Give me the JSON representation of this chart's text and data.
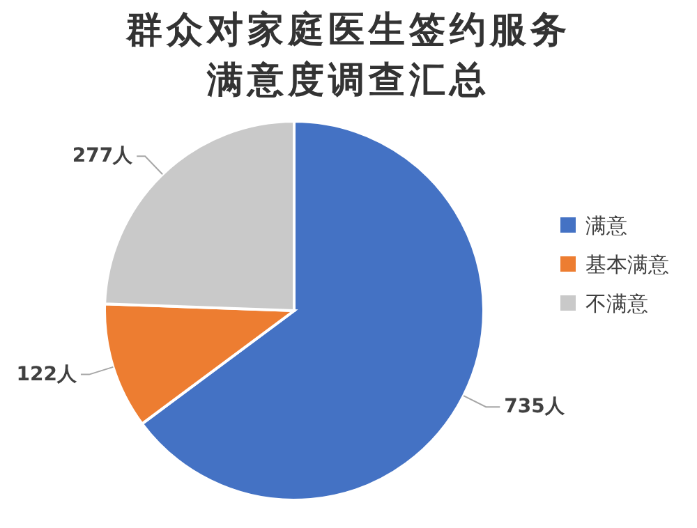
{
  "chart_data": {
    "type": "pie",
    "title": "群众对家庭医生签约服务满意度调查汇总",
    "categories": [
      "满意",
      "基本满意",
      "不满意"
    ],
    "values": [
      735,
      122,
      277
    ],
    "colors": [
      "#4472c4",
      "#ed7d31",
      "#c9c9c9"
    ],
    "value_labels": [
      "735人",
      "122人",
      "277人"
    ],
    "legend": "right"
  }
}
